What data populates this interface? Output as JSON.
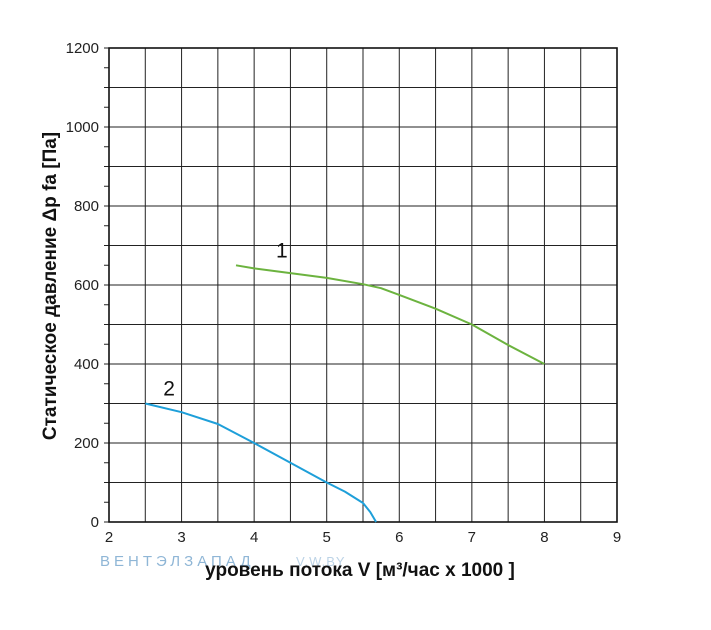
{
  "chart_data": {
    "type": "line",
    "title": "",
    "xlabel": "уровень потока  V [м³/час x 1000 ]",
    "ylabel": "Статическое давление  Δp fa [Па]",
    "xlim": [
      2,
      9
    ],
    "ylim": [
      0,
      1200
    ],
    "x_ticks": [
      "2",
      "3",
      "4",
      "5",
      "6",
      "7",
      "8",
      "9"
    ],
    "y_ticks": [
      "0",
      "200",
      "400",
      "600",
      "800",
      "1000",
      "1200"
    ],
    "grid": true,
    "series": [
      {
        "name": "1",
        "color": "#6cb33f",
        "points": [
          [
            3.75,
            650
          ],
          [
            4.0,
            642
          ],
          [
            4.5,
            630
          ],
          [
            5.0,
            618
          ],
          [
            5.5,
            602
          ],
          [
            5.75,
            592
          ],
          [
            6.0,
            575
          ],
          [
            6.5,
            540
          ],
          [
            7.0,
            500
          ],
          [
            7.5,
            448
          ],
          [
            8.0,
            400
          ]
        ]
      },
      {
        "name": "2",
        "color": "#1e9fd9",
        "points": [
          [
            2.5,
            300
          ],
          [
            3.0,
            278
          ],
          [
            3.5,
            248
          ],
          [
            4.0,
            200
          ],
          [
            4.5,
            150
          ],
          [
            5.0,
            100
          ],
          [
            5.25,
            77
          ],
          [
            5.5,
            48
          ],
          [
            5.6,
            25
          ],
          [
            5.68,
            0
          ]
        ]
      }
    ]
  },
  "watermark": {
    "brand": "ВЕНТЭЛЗАПАД",
    "domain": "V.W.BY"
  }
}
